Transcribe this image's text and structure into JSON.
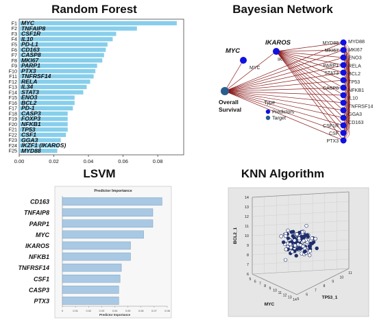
{
  "rf": {
    "title": "Random Forest",
    "chart_data": {
      "type": "bar",
      "orientation": "horizontal",
      "codes": [
        "F1",
        "F2",
        "F3",
        "F4",
        "F5",
        "F6",
        "F7",
        "F8",
        "F9",
        "F10",
        "F11",
        "F12",
        "F13",
        "F14",
        "F15",
        "F16",
        "F17",
        "F18",
        "F19",
        "F20",
        "F21",
        "F22",
        "F23",
        "F24",
        "F25"
      ],
      "categories": [
        "MYC",
        "TNFAIP8",
        "CSF1R",
        "IL10",
        "PD-L1",
        "CD163",
        "CASP8",
        "MKI67",
        "PARP1",
        "PTX3",
        "TNFRSF14",
        "RELA",
        "IL34",
        "STAT3",
        "ENO3",
        "BCL2",
        "PD-1",
        "CASP3",
        "FOXP3",
        "NFKB1",
        "TP53",
        "CSF1",
        "GGA3",
        "IKZF1 (IKAROS)",
        "MYD88"
      ],
      "values": [
        0.091,
        0.068,
        0.056,
        0.054,
        0.051,
        0.05,
        0.049,
        0.048,
        0.045,
        0.044,
        0.043,
        0.041,
        0.039,
        0.037,
        0.032,
        0.032,
        0.031,
        0.028,
        0.028,
        0.028,
        0.028,
        0.027,
        0.024,
        0.023,
        0.022
      ],
      "xticks": [
        "0.00",
        "0.02",
        "0.04",
        "0.06",
        "0.08"
      ],
      "xlim": [
        0,
        0.095
      ],
      "color": "#87CEEB"
    }
  },
  "bn": {
    "title": "Bayesian Network",
    "target_label_line1": "Overall",
    "target_label_line2": "Survival",
    "myc_big": "MYC",
    "ikaros_big": "IKAROS",
    "myc_small": "MYC",
    "ikaros_small": "IK",
    "right_nodes": [
      "MYD88",
      "MKI67",
      "",
      "PARP1",
      "STAT3",
      "",
      "CASP8",
      "",
      "",
      "",
      "",
      "CSF1R",
      "CSF",
      "PTX3"
    ],
    "right_labels": [
      "MYD88",
      "MKI67",
      "ENO3",
      "RELA",
      "BCL2",
      "TP53",
      "NFKB1",
      "IL10",
      "TNFRSF14",
      "GGA3",
      "CD163"
    ],
    "legend_title": "Type",
    "legend_items": [
      {
        "label": "Predictors",
        "color": "#1010e0"
      },
      {
        "label": "Target",
        "color": "#2a5d8f"
      }
    ],
    "edge_color": "#8b1a1a",
    "node_color": "#1010e0",
    "target_color": "#2a5d8f"
  },
  "lsvm": {
    "title": "LSVM",
    "inner_title": "Predictor Importance",
    "xlabel": "Predictor Importance",
    "chart_data": {
      "type": "bar",
      "orientation": "horizontal",
      "categories": [
        "CD163",
        "TNFAIP8",
        "PARP1",
        "MYC",
        "IKAROS",
        "NFKB1",
        "TNFRSF14",
        "CSF1",
        "CASP3",
        "PTX3"
      ],
      "values": [
        0.076,
        0.069,
        0.069,
        0.062,
        0.052,
        0.052,
        0.045,
        0.044,
        0.043,
        0.043
      ],
      "xticks": [
        "0",
        "0.01",
        "0.02",
        "0.03",
        "0.04",
        "0.05",
        "0.06",
        "0.07",
        "0.08"
      ],
      "xlim": [
        0,
        0.08
      ],
      "color": "#a9c8e3"
    }
  },
  "knn": {
    "title": "KNN Algorithm",
    "xlabel": "MYC",
    "ylabel": "TP53_1",
    "zlabel": "BCL2_1",
    "zticks": [
      "6",
      "7",
      "8",
      "9",
      "10",
      "11",
      "12",
      "13",
      "14"
    ],
    "myc_ticks": [
      "5",
      "6",
      "7",
      "8",
      "9",
      "10",
      "11",
      "12",
      "13",
      "14"
    ],
    "tp53_ticks": [
      "5",
      "6",
      "7",
      "8",
      "9",
      "10",
      "11"
    ],
    "chart_data": {
      "type": "scatter",
      "dimensions": 3
    }
  }
}
